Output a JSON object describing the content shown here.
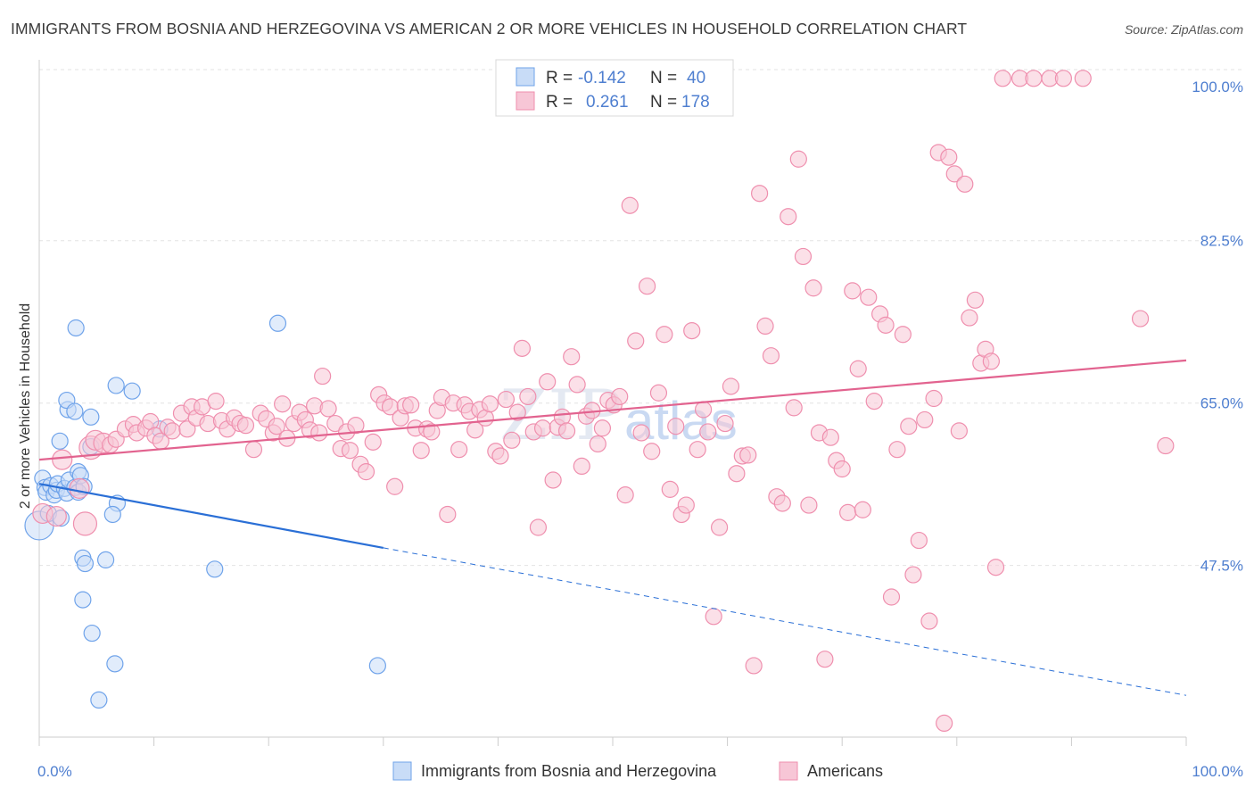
{
  "title": "IMMIGRANTS FROM BOSNIA AND HERZEGOVINA VS AMERICAN 2 OR MORE VEHICLES IN HOUSEHOLD CORRELATION CHART",
  "source": "Source: ZipAtlas.com",
  "watermark": {
    "part1": "ZIP",
    "part2": "atlas"
  },
  "chart_data": {
    "type": "scatter",
    "ylabel": "2 or more Vehicles in Household",
    "xlim": [
      0,
      100
    ],
    "ylim": [
      29,
      102
    ],
    "yticks": [
      {
        "value": 100.0,
        "label": "100.0%"
      },
      {
        "value": 82.5,
        "label": "82.5%"
      },
      {
        "value": 65.0,
        "label": "65.0%"
      },
      {
        "value": 47.5,
        "label": "47.5%"
      }
    ],
    "xtick_labels": [
      {
        "value": 0,
        "label": "0.0%"
      },
      {
        "value": 100,
        "label": "100.0%"
      }
    ],
    "xtick_marks": [
      0,
      10,
      20,
      30,
      40,
      50,
      60,
      70,
      80,
      90,
      100
    ],
    "grid": true,
    "legend": {
      "placement": "top-center",
      "rows": [
        {
          "r_label": "R =",
          "r_value": "-0.142",
          "n_label": "N =",
          "n_value": "40"
        },
        {
          "r_label": "R =",
          "r_value": "0.261",
          "n_label": "N =",
          "n_value": "178"
        }
      ]
    },
    "series": [
      {
        "name": "Immigrants from Bosnia and Herzegovina",
        "color": "#6fa3ea",
        "fill": "#c8dcf7",
        "trend": {
          "x0": 0,
          "y0": 56.3,
          "x1": 30,
          "y1": 49.4,
          "dash_to_x": 100,
          "dash_to_y": 33.5,
          "color": "#2a6fd6"
        },
        "points": [
          [
            0.0,
            51.8,
            16
          ],
          [
            0.3,
            56.9,
            9
          ],
          [
            0.5,
            55.9,
            9
          ],
          [
            0.6,
            55.4,
            9
          ],
          [
            0.8,
            53.1,
            9
          ],
          [
            1.0,
            56.1,
            9
          ],
          [
            1.3,
            55.1,
            9
          ],
          [
            1.5,
            55.6,
            9
          ],
          [
            1.6,
            56.3,
            9
          ],
          [
            1.9,
            52.6,
            9
          ],
          [
            2.2,
            55.8,
            9
          ],
          [
            2.4,
            55.3,
            9
          ],
          [
            2.6,
            56.7,
            9
          ],
          [
            1.8,
            60.9,
            9
          ],
          [
            2.5,
            64.3,
            9
          ],
          [
            2.4,
            65.3,
            9
          ],
          [
            3.1,
            55.9,
            9
          ],
          [
            3.4,
            57.6,
            9
          ],
          [
            3.6,
            57.2,
            9
          ],
          [
            3.4,
            55.4,
            9
          ],
          [
            3.1,
            64.1,
            9
          ],
          [
            3.2,
            73.1,
            9
          ],
          [
            4.5,
            63.5,
            9
          ],
          [
            4.5,
            60.3,
            9
          ],
          [
            6.7,
            66.9,
            9
          ],
          [
            8.1,
            66.3,
            9
          ],
          [
            6.8,
            54.2,
            9
          ],
          [
            6.4,
            53.0,
            9
          ],
          [
            10.5,
            62.2,
            9
          ],
          [
            20.8,
            73.6,
            9
          ],
          [
            3.8,
            48.3,
            9
          ],
          [
            4.0,
            47.7,
            9
          ],
          [
            5.8,
            48.1,
            9
          ],
          [
            3.8,
            43.8,
            9
          ],
          [
            4.6,
            40.2,
            9
          ],
          [
            6.6,
            36.9,
            9
          ],
          [
            5.2,
            33.0,
            9
          ],
          [
            15.3,
            47.1,
            9
          ],
          [
            29.5,
            36.7,
            9
          ],
          [
            3.9,
            56.0,
            9
          ]
        ]
      },
      {
        "name": "Americans",
        "color": "#ef8fae",
        "fill": "#f7c6d6",
        "trend": {
          "x0": 0,
          "y0": 58.9,
          "x1": 100,
          "y1": 69.6,
          "color": "#e2638f"
        },
        "points": [
          [
            0.3,
            53.1,
            11
          ],
          [
            1.5,
            52.8,
            11
          ],
          [
            2.0,
            58.9,
            11
          ],
          [
            3.5,
            55.8,
            11
          ],
          [
            4.0,
            52.0,
            13
          ],
          [
            4.5,
            60.2,
            13
          ],
          [
            4.9,
            61.0,
            11
          ],
          [
            5.6,
            60.7,
            11
          ],
          [
            6.2,
            60.5,
            9
          ],
          [
            6.7,
            61.1,
            9
          ],
          [
            7.5,
            62.2,
            9
          ],
          [
            8.2,
            62.7,
            9
          ],
          [
            8.5,
            61.8,
            9
          ],
          [
            9.3,
            62.3,
            9
          ],
          [
            9.7,
            63.0,
            9
          ],
          [
            10.1,
            61.5,
            9
          ],
          [
            10.6,
            60.9,
            9
          ],
          [
            11.2,
            62.4,
            9
          ],
          [
            11.6,
            62.0,
            9
          ],
          [
            12.4,
            63.9,
            9
          ],
          [
            12.9,
            62.2,
            9
          ],
          [
            13.3,
            64.6,
            9
          ],
          [
            13.7,
            63.4,
            9
          ],
          [
            14.2,
            64.6,
            9
          ],
          [
            14.7,
            62.8,
            9
          ],
          [
            15.4,
            65.2,
            9
          ],
          [
            15.9,
            63.1,
            9
          ],
          [
            16.4,
            62.2,
            9
          ],
          [
            17.0,
            63.4,
            9
          ],
          [
            17.5,
            62.8,
            9
          ],
          [
            18.0,
            62.6,
            9
          ],
          [
            18.7,
            60.0,
            9
          ],
          [
            19.3,
            63.9,
            9
          ],
          [
            19.8,
            63.3,
            9
          ],
          [
            20.4,
            61.8,
            9
          ],
          [
            20.7,
            62.5,
            9
          ],
          [
            21.2,
            64.9,
            9
          ],
          [
            21.6,
            61.2,
            9
          ],
          [
            22.2,
            62.8,
            9
          ],
          [
            22.7,
            64.0,
            9
          ],
          [
            23.2,
            63.2,
            9
          ],
          [
            23.6,
            62.1,
            9
          ],
          [
            24.0,
            64.7,
            9
          ],
          [
            24.4,
            61.8,
            9
          ],
          [
            24.7,
            67.9,
            9
          ],
          [
            25.2,
            64.4,
            9
          ],
          [
            25.8,
            62.8,
            9
          ],
          [
            26.3,
            60.1,
            9
          ],
          [
            26.8,
            61.9,
            9
          ],
          [
            27.1,
            59.9,
            9
          ],
          [
            27.6,
            62.6,
            9
          ],
          [
            28.0,
            58.4,
            9
          ],
          [
            28.5,
            57.6,
            9
          ],
          [
            29.1,
            60.8,
            9
          ],
          [
            29.6,
            65.9,
            9
          ],
          [
            30.1,
            65.0,
            9
          ],
          [
            30.6,
            64.6,
            9
          ],
          [
            31.0,
            56.0,
            9
          ],
          [
            31.5,
            63.4,
            9
          ],
          [
            31.9,
            64.7,
            9
          ],
          [
            32.4,
            64.8,
            9
          ],
          [
            32.8,
            62.3,
            9
          ],
          [
            33.3,
            59.9,
            9
          ],
          [
            33.8,
            62.2,
            9
          ],
          [
            34.2,
            61.9,
            9
          ],
          [
            34.7,
            64.2,
            9
          ],
          [
            35.1,
            65.6,
            9
          ],
          [
            35.6,
            53.0,
            9
          ],
          [
            36.1,
            65.0,
            9
          ],
          [
            36.6,
            60.0,
            9
          ],
          [
            37.1,
            64.8,
            9
          ],
          [
            37.5,
            64.1,
            9
          ],
          [
            38.0,
            62.1,
            9
          ],
          [
            38.4,
            64.3,
            9
          ],
          [
            38.9,
            63.4,
            9
          ],
          [
            39.3,
            64.9,
            9
          ],
          [
            39.8,
            59.8,
            9
          ],
          [
            40.2,
            59.3,
            9
          ],
          [
            40.7,
            65.4,
            9
          ],
          [
            41.2,
            61.0,
            9
          ],
          [
            41.7,
            64.0,
            9
          ],
          [
            42.1,
            70.9,
            9
          ],
          [
            42.6,
            65.7,
            9
          ],
          [
            43.1,
            61.9,
            9
          ],
          [
            43.5,
            51.6,
            9
          ],
          [
            43.9,
            62.3,
            9
          ],
          [
            44.3,
            67.3,
            9
          ],
          [
            44.8,
            56.7,
            9
          ],
          [
            45.2,
            62.4,
            9
          ],
          [
            45.6,
            63.5,
            9
          ],
          [
            46.0,
            62.0,
            9
          ],
          [
            46.4,
            70.0,
            9
          ],
          [
            46.9,
            67.0,
            9
          ],
          [
            47.3,
            58.2,
            9
          ],
          [
            47.7,
            63.6,
            9
          ],
          [
            48.2,
            64.2,
            9
          ],
          [
            48.7,
            60.6,
            9
          ],
          [
            49.1,
            62.3,
            9
          ],
          [
            49.6,
            65.3,
            9
          ],
          [
            50.1,
            64.8,
            9
          ],
          [
            50.6,
            65.7,
            9
          ],
          [
            51.1,
            55.1,
            9
          ],
          [
            51.5,
            86.3,
            9
          ],
          [
            52.0,
            71.7,
            9
          ],
          [
            52.5,
            61.8,
            9
          ],
          [
            53.0,
            77.6,
            9
          ],
          [
            53.4,
            59.8,
            9
          ],
          [
            54.0,
            66.1,
            9
          ],
          [
            54.5,
            72.4,
            9
          ],
          [
            55.0,
            55.7,
            9
          ],
          [
            55.5,
            62.5,
            9
          ],
          [
            56.0,
            53.0,
            9
          ],
          [
            56.4,
            54.0,
            9
          ],
          [
            56.9,
            72.8,
            9
          ],
          [
            57.4,
            60.0,
            9
          ],
          [
            57.9,
            64.3,
            9
          ],
          [
            58.3,
            61.9,
            9
          ],
          [
            58.8,
            42.0,
            9
          ],
          [
            59.3,
            51.6,
            9
          ],
          [
            59.8,
            62.8,
            9
          ],
          [
            60.3,
            66.8,
            9
          ],
          [
            60.8,
            57.4,
            9
          ],
          [
            61.3,
            59.3,
            9
          ],
          [
            61.8,
            59.4,
            9
          ],
          [
            62.3,
            36.7,
            9
          ],
          [
            62.8,
            87.6,
            9
          ],
          [
            63.3,
            73.3,
            9
          ],
          [
            63.8,
            70.1,
            9
          ],
          [
            64.3,
            54.9,
            9
          ],
          [
            64.8,
            54.2,
            9
          ],
          [
            65.3,
            85.1,
            9
          ],
          [
            65.8,
            64.5,
            9
          ],
          [
            66.2,
            91.3,
            9
          ],
          [
            66.6,
            80.8,
            9
          ],
          [
            67.1,
            54.0,
            9
          ],
          [
            67.5,
            77.4,
            9
          ],
          [
            68.0,
            61.8,
            9
          ],
          [
            68.5,
            37.4,
            9
          ],
          [
            69.0,
            61.3,
            9
          ],
          [
            69.5,
            58.8,
            9
          ],
          [
            70.0,
            57.9,
            9
          ],
          [
            70.5,
            53.2,
            9
          ],
          [
            70.9,
            77.1,
            9
          ],
          [
            71.4,
            68.7,
            9
          ],
          [
            71.8,
            53.5,
            9
          ],
          [
            72.3,
            76.4,
            9
          ],
          [
            72.8,
            65.2,
            9
          ],
          [
            73.3,
            74.6,
            9
          ],
          [
            73.8,
            73.4,
            9
          ],
          [
            74.3,
            44.1,
            9
          ],
          [
            74.8,
            60.0,
            9
          ],
          [
            75.3,
            72.4,
            9
          ],
          [
            75.8,
            62.5,
            9
          ],
          [
            76.2,
            46.5,
            9
          ],
          [
            76.7,
            50.2,
            9
          ],
          [
            77.2,
            63.2,
            9
          ],
          [
            77.6,
            41.5,
            9
          ],
          [
            78.0,
            65.5,
            9
          ],
          [
            78.4,
            92.0,
            9
          ],
          [
            78.9,
            30.5,
            9
          ],
          [
            79.3,
            91.5,
            9
          ],
          [
            79.8,
            89.7,
            9
          ],
          [
            80.2,
            62.0,
            9
          ],
          [
            80.7,
            88.6,
            9
          ],
          [
            81.1,
            74.2,
            9
          ],
          [
            81.6,
            76.1,
            9
          ],
          [
            82.1,
            69.3,
            9
          ],
          [
            82.5,
            70.8,
            9
          ],
          [
            83.0,
            69.5,
            9
          ],
          [
            83.4,
            47.3,
            9
          ],
          [
            84.0,
            100.0,
            9
          ],
          [
            85.5,
            100.0,
            9
          ],
          [
            86.7,
            100.0,
            9
          ],
          [
            88.1,
            100.0,
            9
          ],
          [
            89.3,
            100.0,
            9
          ],
          [
            91.0,
            100.0,
            9
          ],
          [
            96.0,
            74.1,
            9
          ],
          [
            98.2,
            60.4,
            9
          ]
        ]
      }
    ]
  },
  "bottom_legend": [
    {
      "label": "Immigrants from Bosnia and Herzegovina"
    },
    {
      "label": "Americans"
    }
  ]
}
